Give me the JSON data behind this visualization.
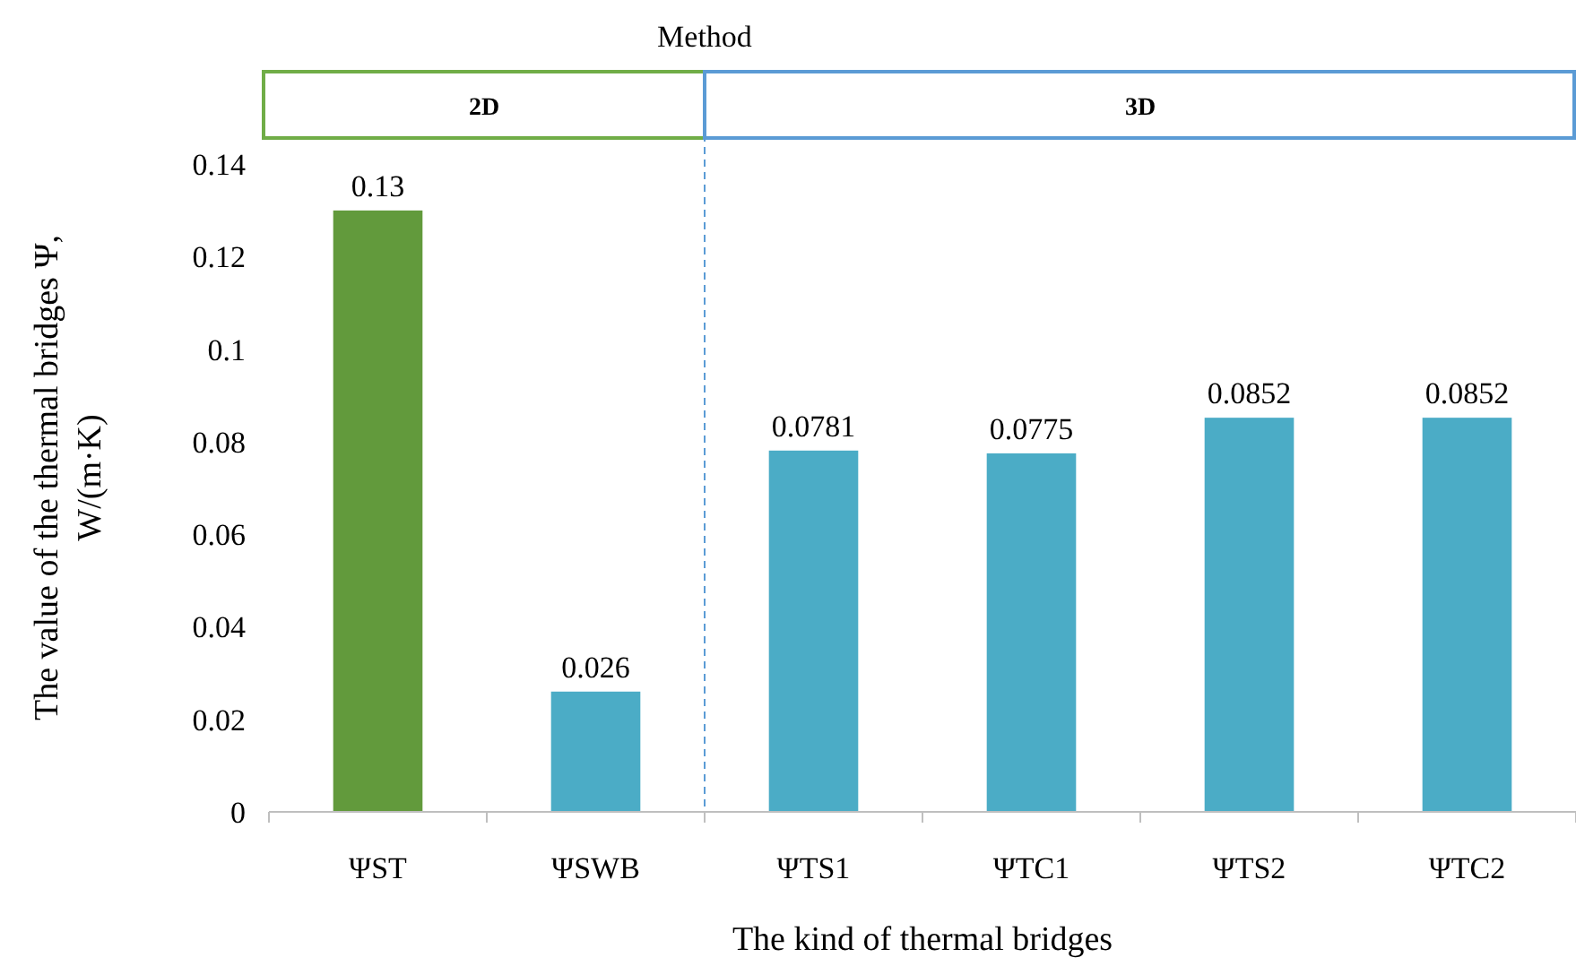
{
  "chart_data": {
    "type": "bar",
    "xlabel": "The kind of thermal bridges",
    "ylabel": "The value of the thermal bridges Ψ, W/(m·K)",
    "categories": [
      "ΨST",
      "ΨSWB",
      "ΨTS1",
      "ΨTC1",
      "ΨTS2",
      "ΨTC2"
    ],
    "values": [
      0.13,
      0.026,
      0.0781,
      0.0775,
      0.0852,
      0.0852
    ],
    "colors": [
      "#629a3c",
      "#4bacc6",
      "#4bacc6",
      "#4bacc6",
      "#4bacc6",
      "#4bacc6"
    ],
    "ylim": [
      0,
      0.16
    ],
    "yticks": [
      0,
      0.02,
      0.04,
      0.06,
      0.08,
      0.1,
      0.12,
      0.14
    ],
    "data_labels": true,
    "grid": false,
    "ref_lines": [
      {
        "axis": "x",
        "value": "ΨTS1",
        "color": "#5b9bd5",
        "line_style": "dashed"
      }
    ],
    "annotations": [
      "Method",
      "2D",
      "3D"
    ]
  }
}
